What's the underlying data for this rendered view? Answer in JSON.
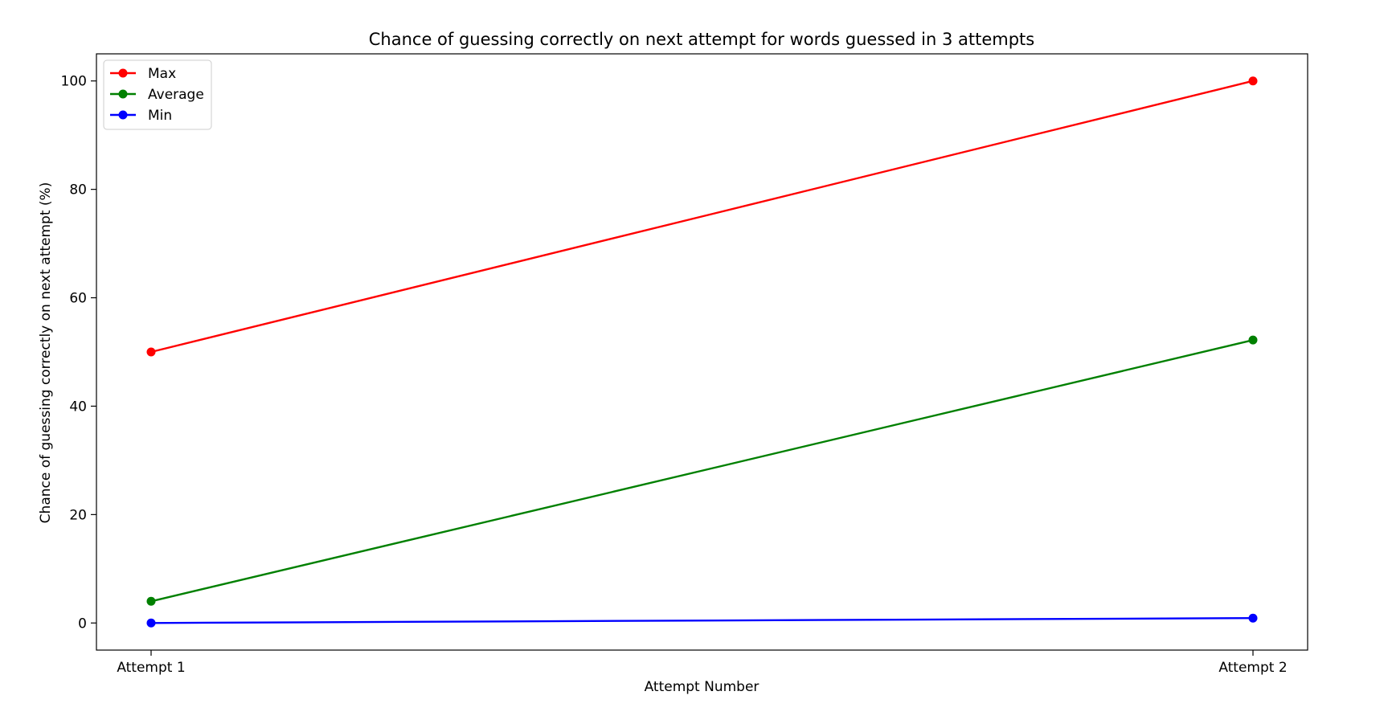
{
  "chart_data": {
    "type": "line",
    "title": "Chance of guessing correctly on next attempt for words guessed in 3 attempts",
    "xlabel": "Attempt Number",
    "ylabel": "Chance of guessing correctly on next attempt (%)",
    "categories": [
      "Attempt 1",
      "Attempt 2"
    ],
    "ylim": [
      -5,
      105
    ],
    "yticks": [
      0,
      20,
      40,
      60,
      80,
      100
    ],
    "grid": false,
    "legend_position": "top-left",
    "marker": "circle",
    "series": [
      {
        "name": "Max",
        "color": "#ff0000",
        "values": [
          50,
          100
        ]
      },
      {
        "name": "Average",
        "color": "#008000",
        "values": [
          4,
          52.2
        ]
      },
      {
        "name": "Min",
        "color": "#0000ff",
        "values": [
          0,
          0.9
        ]
      }
    ]
  }
}
